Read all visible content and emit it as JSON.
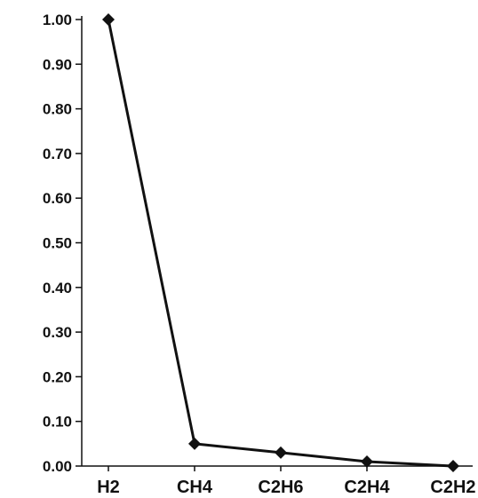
{
  "chart_data": {
    "type": "line",
    "title": "",
    "xlabel": "",
    "ylabel": "",
    "categories": [
      "H2",
      "CH4",
      "C2H6",
      "C2H4",
      "C2H2"
    ],
    "series": [
      {
        "values": [
          1.0,
          0.05,
          0.03,
          0.01,
          0.0
        ]
      }
    ],
    "ylim": [
      0,
      1.0
    ],
    "y_ticks": [
      "0.00",
      "0.10",
      "0.20",
      "0.30",
      "0.40",
      "0.50",
      "0.60",
      "0.70",
      "0.80",
      "0.90",
      "1.00"
    ],
    "grid": false,
    "legend": "none",
    "marker": "diamond",
    "colors": {
      "line": "#111111",
      "axis": "#111111",
      "background": "#ffffff"
    }
  }
}
